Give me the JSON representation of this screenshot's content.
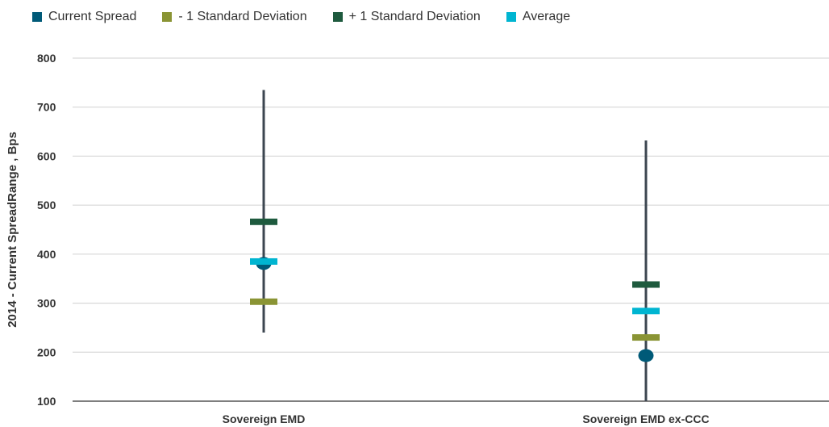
{
  "chart_data": {
    "type": "range",
    "ylabel": "2014 - Current SpreadRange , Bps",
    "xlabel": "",
    "ylim": [
      100,
      800
    ],
    "yticks": [
      100,
      200,
      300,
      400,
      500,
      600,
      700,
      800
    ],
    "grid": true,
    "legend_position": "top-left",
    "categories": [
      "Sovereign EMD",
      "Sovereign EMD ex-CCC"
    ],
    "range": {
      "low": [
        240,
        0
      ],
      "high": [
        735,
        632
      ]
    },
    "series": [
      {
        "name": "Current Spread",
        "values": [
          381,
          193
        ],
        "color": "#005a78",
        "marker": "circle"
      },
      {
        "name": "- 1 Standard Deviation",
        "values": [
          303,
          230
        ],
        "color": "#8a9434",
        "marker": "dash"
      },
      {
        "name": "+ 1 Standard Deviation",
        "values": [
          466,
          338
        ],
        "color": "#1e5a3e",
        "marker": "dash"
      },
      {
        "name": "Average",
        "values": [
          385,
          284
        ],
        "color": "#00b5d1",
        "marker": "dash"
      }
    ],
    "range_line_color": "#3c4650"
  }
}
